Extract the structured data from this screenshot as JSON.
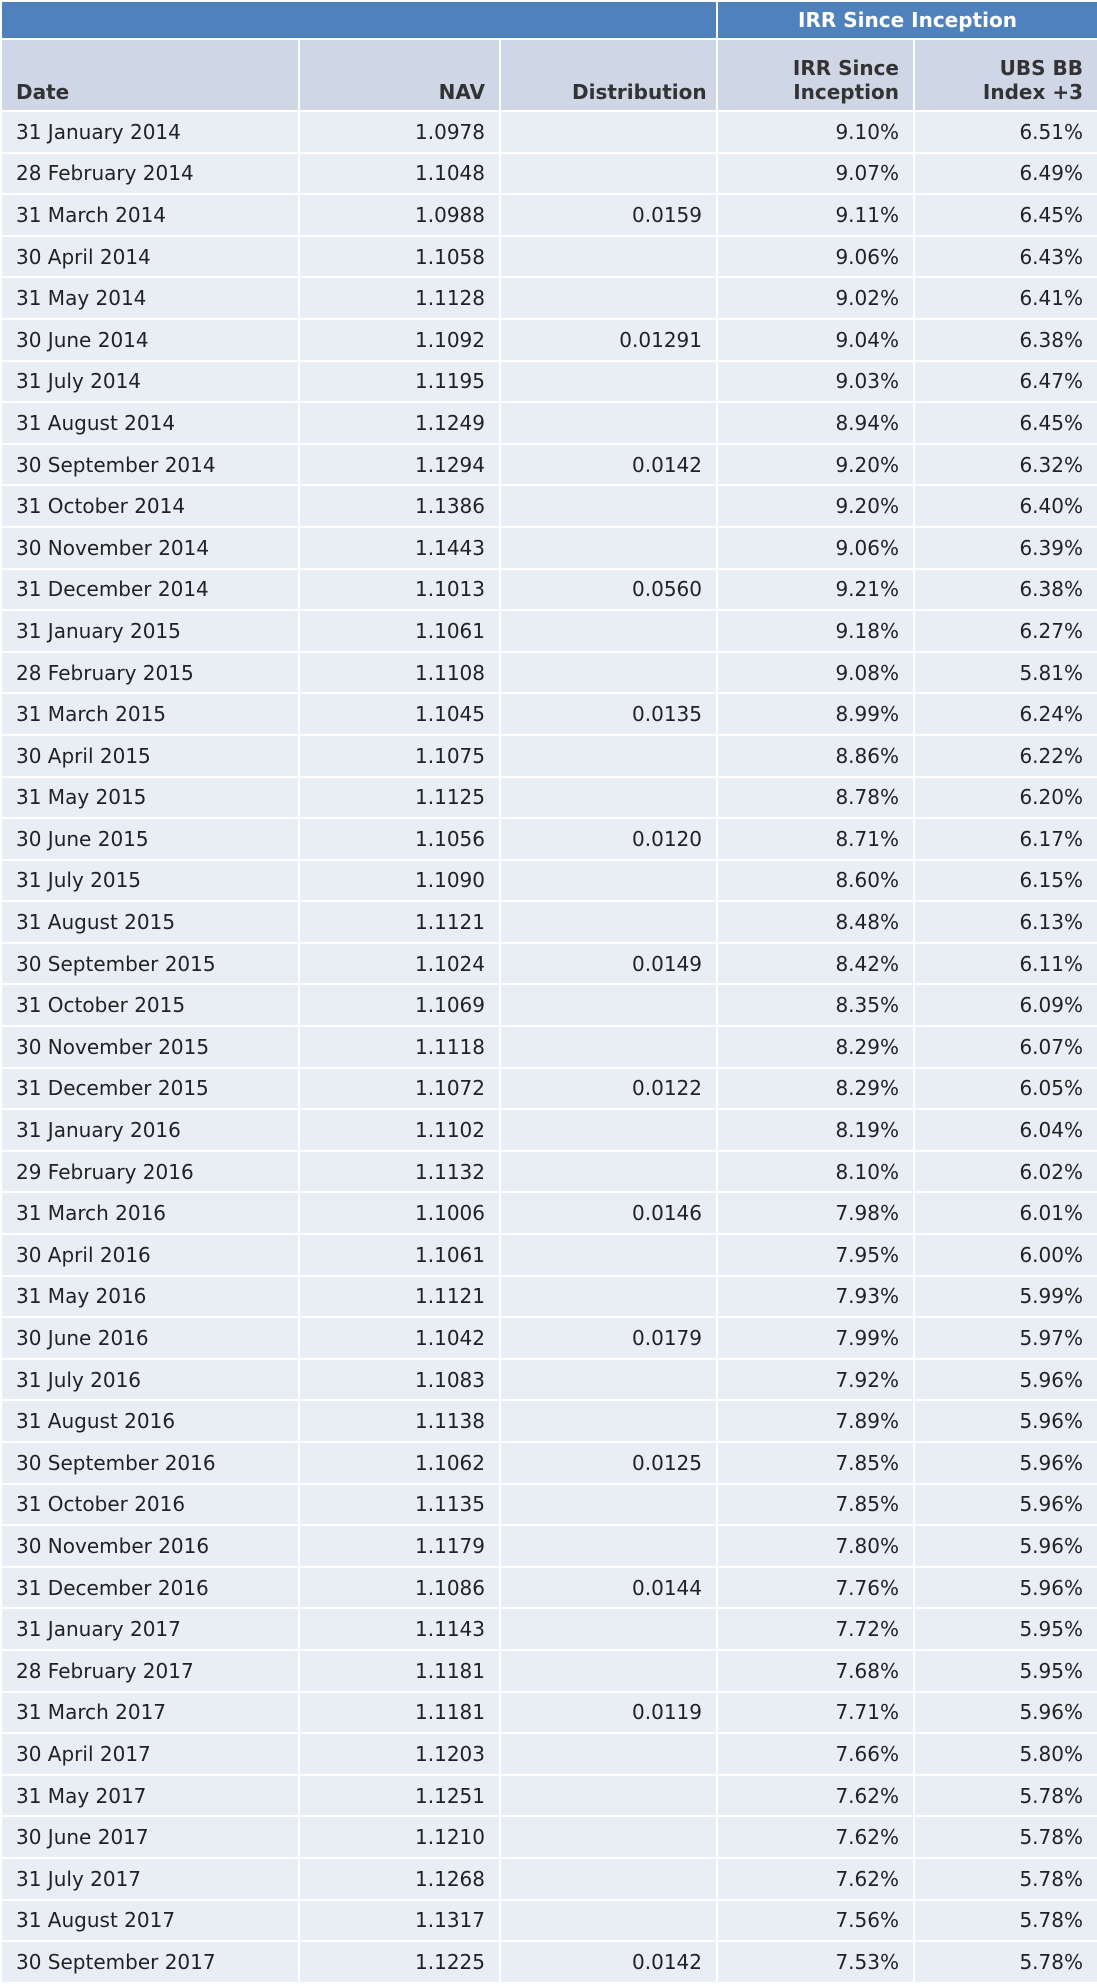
{
  "table": {
    "group_title": "IRR  Since Inception",
    "columns": [
      "Date",
      "NAV",
      "Distribution",
      "IRR Since Inception",
      "UBS BB Index +3"
    ],
    "rows": [
      [
        "31 January 2014",
        "1.0978",
        null,
        "9.10%",
        "6.51%"
      ],
      [
        "28 February 2014",
        "1.1048",
        null,
        "9.07%",
        "6.49%"
      ],
      [
        "31 March 2014",
        "1.0988",
        "0.0159",
        "9.11%",
        "6.45%"
      ],
      [
        "30 April 2014",
        "1.1058",
        null,
        "9.06%",
        "6.43%"
      ],
      [
        "31 May 2014",
        "1.1128",
        null,
        "9.02%",
        "6.41%"
      ],
      [
        "30 June 2014",
        "1.1092",
        "0.01291",
        "9.04%",
        "6.38%"
      ],
      [
        "31 July 2014",
        "1.1195",
        null,
        "9.03%",
        "6.47%"
      ],
      [
        "31 August 2014",
        "1.1249",
        null,
        "8.94%",
        "6.45%"
      ],
      [
        "30 September 2014",
        "1.1294",
        "0.0142",
        "9.20%",
        "6.32%"
      ],
      [
        "31 October 2014",
        "1.1386",
        null,
        "9.20%",
        "6.40%"
      ],
      [
        "30 November 2014",
        "1.1443",
        null,
        "9.06%",
        "6.39%"
      ],
      [
        "31 December 2014",
        "1.1013",
        "0.0560",
        "9.21%",
        "6.38%"
      ],
      [
        "31 January 2015",
        "1.1061",
        null,
        "9.18%",
        "6.27%"
      ],
      [
        "28 February 2015",
        "1.1108",
        null,
        "9.08%",
        "5.81%"
      ],
      [
        "31 March 2015",
        "1.1045",
        "0.0135",
        "8.99%",
        "6.24%"
      ],
      [
        "30 April 2015",
        "1.1075",
        null,
        "8.86%",
        "6.22%"
      ],
      [
        "31 May 2015",
        "1.1125",
        null,
        "8.78%",
        "6.20%"
      ],
      [
        "30 June 2015",
        "1.1056",
        "0.0120",
        "8.71%",
        "6.17%"
      ],
      [
        "31 July 2015",
        "1.1090",
        null,
        "8.60%",
        "6.15%"
      ],
      [
        "31 August 2015",
        "1.1121",
        null,
        "8.48%",
        "6.13%"
      ],
      [
        "30 September 2015",
        "1.1024",
        "0.0149",
        "8.42%",
        "6.11%"
      ],
      [
        "31 October 2015",
        "1.1069",
        null,
        "8.35%",
        "6.09%"
      ],
      [
        "30 November 2015",
        "1.1118",
        null,
        "8.29%",
        "6.07%"
      ],
      [
        "31 December 2015",
        "1.1072",
        "0.0122",
        "8.29%",
        "6.05%"
      ],
      [
        "31 January 2016",
        "1.1102",
        null,
        "8.19%",
        "6.04%"
      ],
      [
        "29 February 2016",
        "1.1132",
        null,
        "8.10%",
        "6.02%"
      ],
      [
        "31 March 2016",
        "1.1006",
        "0.0146",
        "7.98%",
        "6.01%"
      ],
      [
        "30 April 2016",
        "1.1061",
        null,
        "7.95%",
        "6.00%"
      ],
      [
        "31 May 2016",
        "1.1121",
        null,
        "7.93%",
        "5.99%"
      ],
      [
        "30 June 2016",
        "1.1042",
        "0.0179",
        "7.99%",
        "5.97%"
      ],
      [
        "31 July 2016",
        "1.1083",
        null,
        "7.92%",
        "5.96%"
      ],
      [
        "31 August 2016",
        "1.1138",
        null,
        "7.89%",
        "5.96%"
      ],
      [
        "30 September 2016",
        "1.1062",
        "0.0125",
        "7.85%",
        "5.96%"
      ],
      [
        "31 October 2016",
        "1.1135",
        null,
        "7.85%",
        "5.96%"
      ],
      [
        "30 November 2016",
        "1.1179",
        null,
        "7.80%",
        "5.96%"
      ],
      [
        "31 December 2016",
        "1.1086",
        "0.0144",
        "7.76%",
        "5.96%"
      ],
      [
        "31 January 2017",
        "1.1143",
        null,
        "7.72%",
        "5.95%"
      ],
      [
        "28 February 2017",
        "1.1181",
        null,
        "7.68%",
        "5.95%"
      ],
      [
        "31 March 2017",
        "1.1181",
        "0.0119",
        "7.71%",
        "5.96%"
      ],
      [
        "30 April 2017",
        "1.1203",
        null,
        "7.66%",
        "5.80%"
      ],
      [
        "31 May 2017",
        "1.1251",
        null,
        "7.62%",
        "5.78%"
      ],
      [
        "30 June 2017",
        "1.1210",
        null,
        "7.62%",
        "5.78%"
      ],
      [
        "31 July 2017",
        "1.1268",
        null,
        "7.62%",
        "5.78%"
      ],
      [
        "31 August 2017",
        "1.1317",
        null,
        "7.56%",
        "5.78%"
      ],
      [
        "30 September 2017",
        "1.1225",
        "0.0142",
        "7.53%",
        "5.78%"
      ]
    ]
  }
}
